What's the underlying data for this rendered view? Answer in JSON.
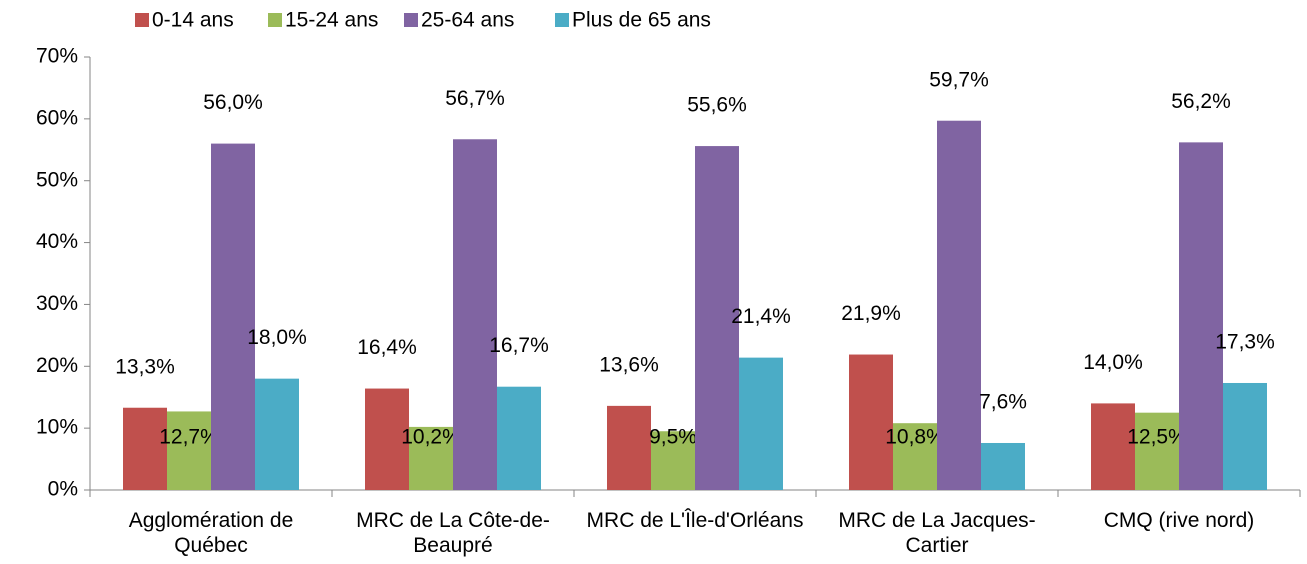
{
  "chart_data": {
    "type": "bar",
    "categories": [
      "Agglomération de Québec",
      "MRC de La Côte-de-Beaupré",
      "MRC de L'Île-d'Orléans",
      "MRC de La Jacques-Cartier",
      "CMQ (rive nord)"
    ],
    "series": [
      {
        "name": "0-14 ans",
        "color": "#c0504d",
        "values": [
          13.3,
          16.4,
          13.6,
          21.9,
          14.0
        ],
        "value_labels": [
          "13,3%",
          "16,4%",
          "13,6%",
          "21,9%",
          "14,0%"
        ]
      },
      {
        "name": "15-24 ans",
        "color": "#9bbb59",
        "values": [
          12.7,
          10.2,
          9.5,
          10.8,
          12.5
        ],
        "value_labels": [
          "12,7%",
          "10,2%",
          "9,5%",
          "10,8%",
          "12,5%"
        ]
      },
      {
        "name": "25-64 ans",
        "color": "#8064a2",
        "values": [
          56.0,
          56.7,
          55.6,
          59.7,
          56.2
        ],
        "value_labels": [
          "56,0%",
          "56,7%",
          "55,6%",
          "59,7%",
          "56,2%"
        ]
      },
      {
        "name": "Plus de 65 ans",
        "color": "#4bacc6",
        "values": [
          18.0,
          16.7,
          21.4,
          7.6,
          17.3
        ],
        "value_labels": [
          "18,0%",
          "16,7%",
          "21,4%",
          "7,6%",
          "17,3%"
        ]
      }
    ],
    "ylim": [
      0,
      70
    ],
    "yticks": [
      {
        "value": 0,
        "label": "0%"
      },
      {
        "value": 10,
        "label": "10%"
      },
      {
        "value": 20,
        "label": "20%"
      },
      {
        "value": 30,
        "label": "30%"
      },
      {
        "value": 40,
        "label": "40%"
      },
      {
        "value": 50,
        "label": "50%"
      },
      {
        "value": 60,
        "label": "60%"
      },
      {
        "value": 70,
        "label": "70%"
      }
    ],
    "grid": false,
    "legend": "top"
  }
}
